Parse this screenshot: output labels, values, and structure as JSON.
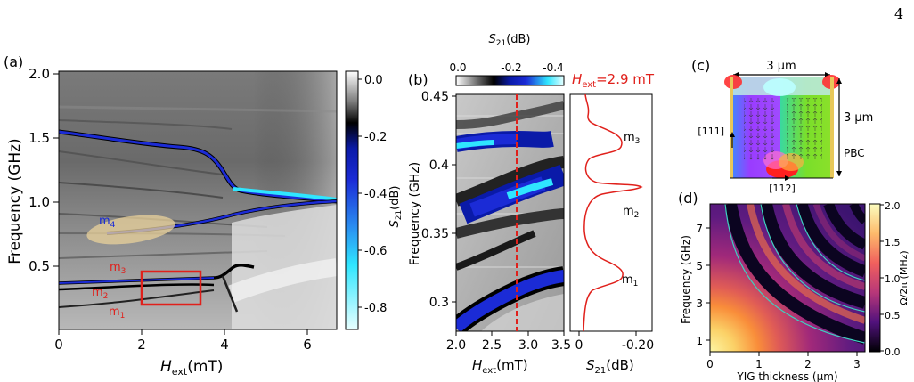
{
  "page_number": "4",
  "colors": {
    "red": "#e0201b",
    "blue": "#1b2bd6",
    "cyan": "#2fe6ff"
  },
  "panel_a": {
    "label": "(a)",
    "xlabel_main": "H",
    "xlabel_sub": "ext",
    "xlabel_unit": "(mT)",
    "ylabel": "Frequency (GHz)",
    "xticks": [
      "0",
      "2",
      "4",
      "6"
    ],
    "yticks": [
      "0.5",
      "1.0",
      "1.5",
      "2.0"
    ],
    "modes": {
      "m4_main": "m",
      "m4_sub": "4",
      "m3_main": "m",
      "m3_sub": "3",
      "m2_main": "m",
      "m2_sub": "2",
      "m1_main": "m",
      "m1_sub": "1"
    },
    "colorbar_label_main": "S",
    "colorbar_label_sub": "21",
    "colorbar_label_unit": "(dB)",
    "colorbar_ticks": [
      "0.0",
      "-0.2",
      "-0.4",
      "-0.6",
      "-0.8"
    ]
  },
  "panel_b": {
    "label": "(b)",
    "colorbar_label_main": "S",
    "colorbar_label_sub": "21",
    "colorbar_label_unit": "(dB)",
    "colorbar_ticks": [
      "0.0",
      "-0.2",
      "-0.4"
    ],
    "hext_label_main": "H",
    "hext_label_sub": "ext",
    "hext_value": "=2.9 mT",
    "ylabel": "Frequency (GHz)",
    "yticks": [
      "0.3",
      "0.35",
      "0.4",
      "0.45"
    ],
    "xticks": [
      "2.0",
      "2.5",
      "3.0",
      "3.5"
    ],
    "xlabel_main": "H",
    "xlabel_sub": "ext",
    "xlabel_unit": "(mT)",
    "spec_xticks": [
      "0",
      "-0.20"
    ],
    "spec_xlabel_main": "S",
    "spec_xlabel_sub": "21",
    "spec_xlabel_unit": "(dB)",
    "modes": {
      "m3_main": "m",
      "m3_sub": "3",
      "m2_main": "m",
      "m2_sub": "2",
      "m1_main": "m",
      "m1_sub": "1"
    }
  },
  "panel_c": {
    "label": "(c)",
    "width_label": "3 μm",
    "height_label": "3 μm",
    "dir_vertical": "[111]",
    "dir_horizontal": "[112]",
    "boundary_label": "PBC"
  },
  "panel_d": {
    "label": "(d)",
    "ylabel": "Frequency (GHz)",
    "xlabel": "YIG thickness (μm)",
    "xticks": [
      "0",
      "1",
      "2",
      "3"
    ],
    "yticks": [
      "1",
      "3",
      "5",
      "7"
    ],
    "colorbar_label": "Ω/2π (MHz)",
    "colorbar_ticks": [
      "2.0",
      "1.5",
      "1.0",
      "0.5",
      "0.0"
    ]
  }
}
